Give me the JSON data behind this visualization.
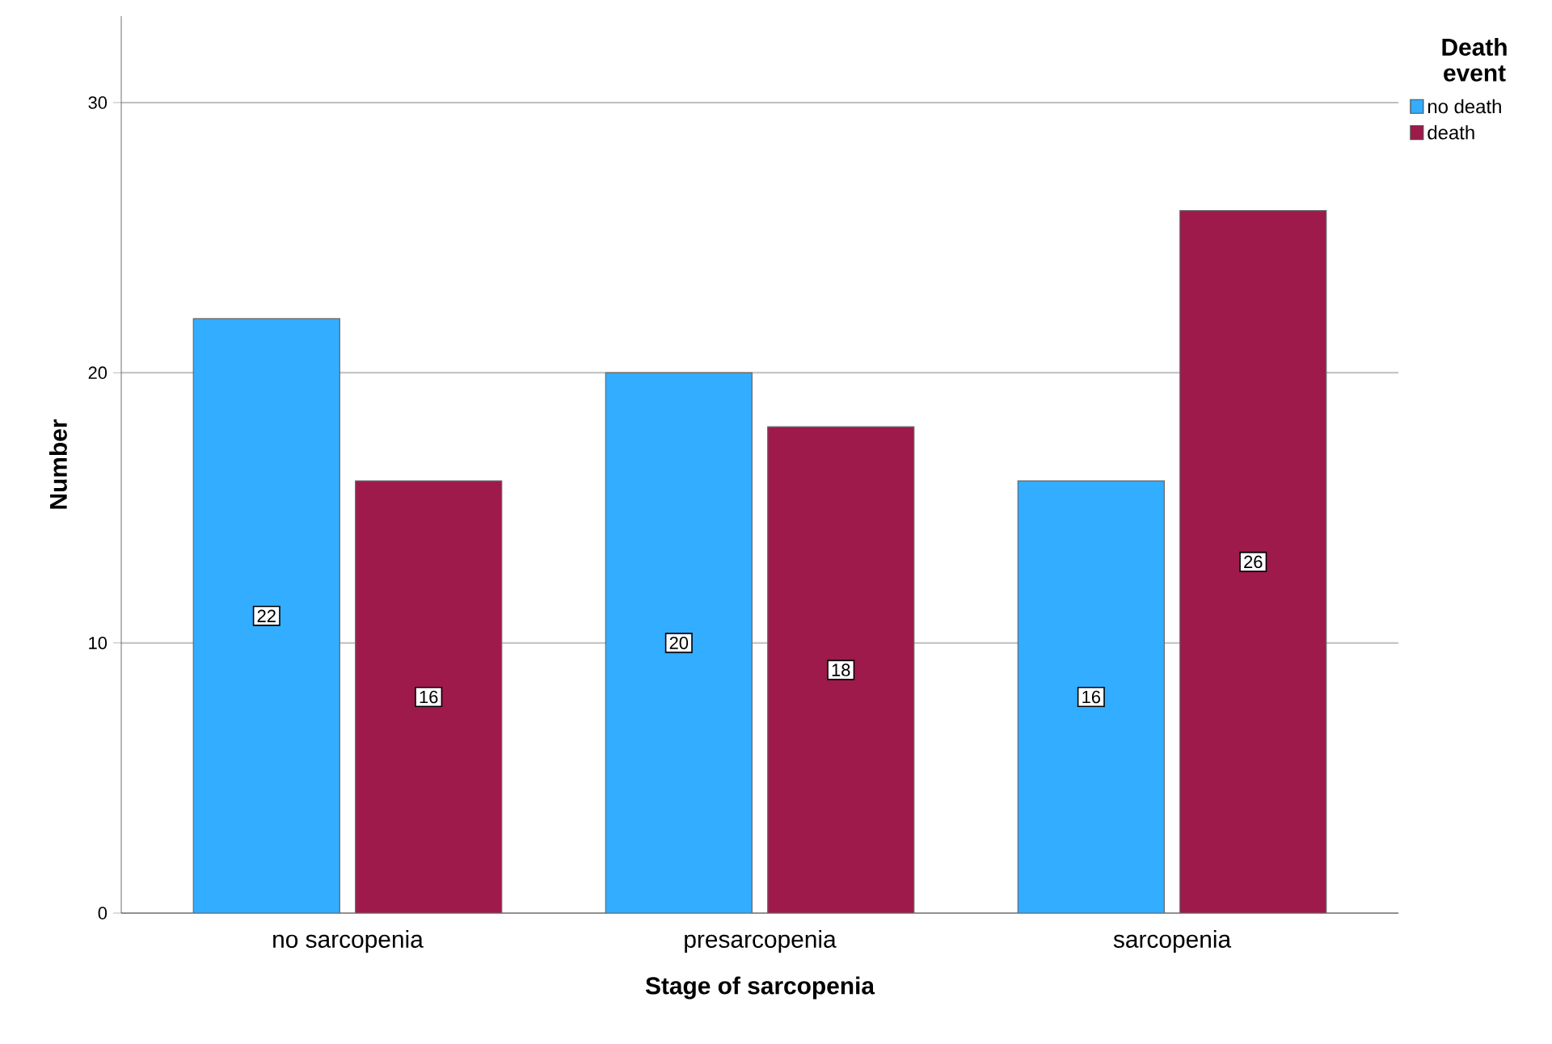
{
  "chart_data": {
    "type": "bar",
    "xlabel": "Stage of sarcopenia",
    "ylabel": "Number",
    "legend_title": "Death event",
    "categories": [
      "no sarcopenia",
      "presarcopenia",
      "sarcopenia"
    ],
    "series": [
      {
        "name": "no death",
        "color": "#33adff",
        "values": [
          22,
          20,
          16
        ]
      },
      {
        "name": "death",
        "color": "#9e1a4b",
        "values": [
          16,
          18,
          26
        ]
      }
    ],
    "ylim": [
      0,
      33.2
    ],
    "yticks": [
      0,
      10,
      20,
      30
    ],
    "grid": "y",
    "legend": "top right",
    "data_labels": true
  }
}
